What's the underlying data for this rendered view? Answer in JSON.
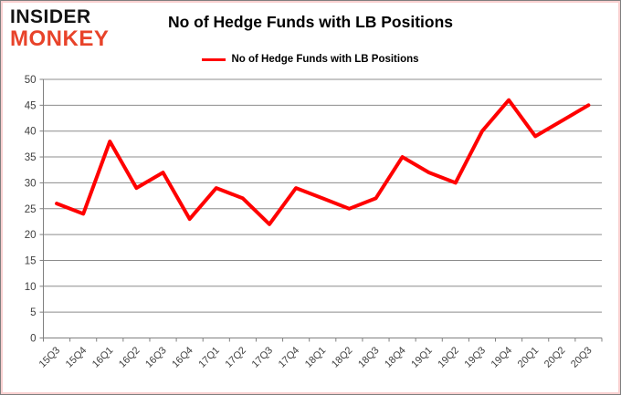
{
  "header": {
    "logo_line1": "INSIDER",
    "logo_line2": "MONKEY",
    "title": "No of Hedge Funds with LB Positions"
  },
  "legend": {
    "label": "No of Hedge Funds with LB Positions"
  },
  "chart_data": {
    "type": "line",
    "title": "No of Hedge Funds with LB Positions",
    "categories": [
      "15Q3",
      "15Q4",
      "16Q1",
      "16Q2",
      "16Q3",
      "16Q4",
      "17Q1",
      "17Q2",
      "17Q3",
      "17Q4",
      "18Q1",
      "18Q2",
      "18Q3",
      "18Q4",
      "19Q1",
      "19Q2",
      "19Q3",
      "19Q4",
      "20Q1",
      "20Q2",
      "20Q3"
    ],
    "series": [
      {
        "name": "No of Hedge Funds with LB Positions",
        "color": "#ff0000",
        "values": [
          26,
          24,
          38,
          29,
          32,
          23,
          29,
          27,
          22,
          29,
          27,
          25,
          27,
          35,
          32,
          30,
          40,
          46,
          39,
          42,
          45
        ]
      }
    ],
    "xlabel": "",
    "ylabel": "",
    "ylim": [
      0,
      50
    ],
    "ytick_step": 5,
    "grid": true,
    "legend_position": "top-center"
  },
  "colors": {
    "series_red": "#ff0000",
    "logo_red": "#e8432a",
    "logo_black": "#141414",
    "gridline": "#8c8c8c",
    "axis": "#808080",
    "tick_label": "#3f3f3f",
    "frame_border_gray": "#7f7f7f",
    "frame_border_pink": "#f4a9a9",
    "background": "#ffffff"
  }
}
